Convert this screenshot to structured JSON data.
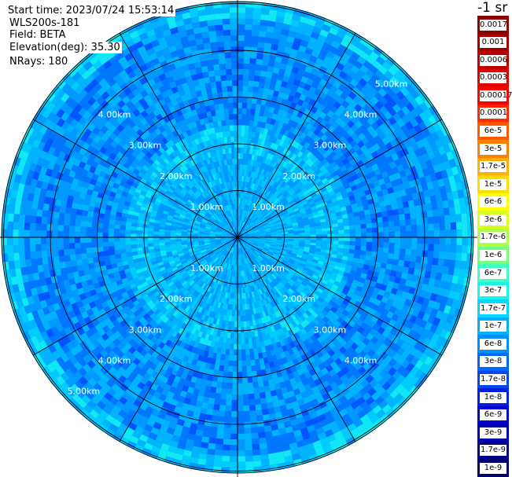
{
  "header": {
    "start_time": "Start time: 2023/07/24 15:53:14",
    "instrument": "WLS200s-181",
    "field": "Field: BETA",
    "elevation": "Elevation(deg): 35.30",
    "nrays": "NRays: 180"
  },
  "unit_label": "-1 sr",
  "range_rings": {
    "labels": [
      "1.00km",
      "2.00km",
      "3.00km",
      "4.00km",
      "5.00km"
    ]
  },
  "colorbar": {
    "labels": [
      "0.0017",
      "0.001",
      "0.0006",
      "0.0003",
      "0.00017",
      "0.0001",
      "6e-5",
      "3e-5",
      "1.7e-5",
      "1e-5",
      "6e-6",
      "3e-6",
      "1.7e-6",
      "1e-6",
      "6e-7",
      "3e-7",
      "1.7e-7",
      "1e-7",
      "6e-8",
      "3e-8",
      "1.7e-8",
      "1e-8",
      "6e-9",
      "3e-9",
      "1.7e-9",
      "1e-9"
    ],
    "colors": [
      "#8b0000",
      "#a00000",
      "#c00000",
      "#e00000",
      "#ff0000",
      "#ff2a00",
      "#ff5a00",
      "#ff8000",
      "#ffb000",
      "#ffdc00",
      "#ffff00",
      "#d8ff20",
      "#a8ff50",
      "#78ff80",
      "#40ffc0",
      "#10f8f0",
      "#00d8ff",
      "#00b0ff",
      "#0090ff",
      "#0068ff",
      "#0048f0",
      "#0020e0",
      "#0000d0",
      "#0000b0",
      "#000090",
      "#000070"
    ]
  }
}
